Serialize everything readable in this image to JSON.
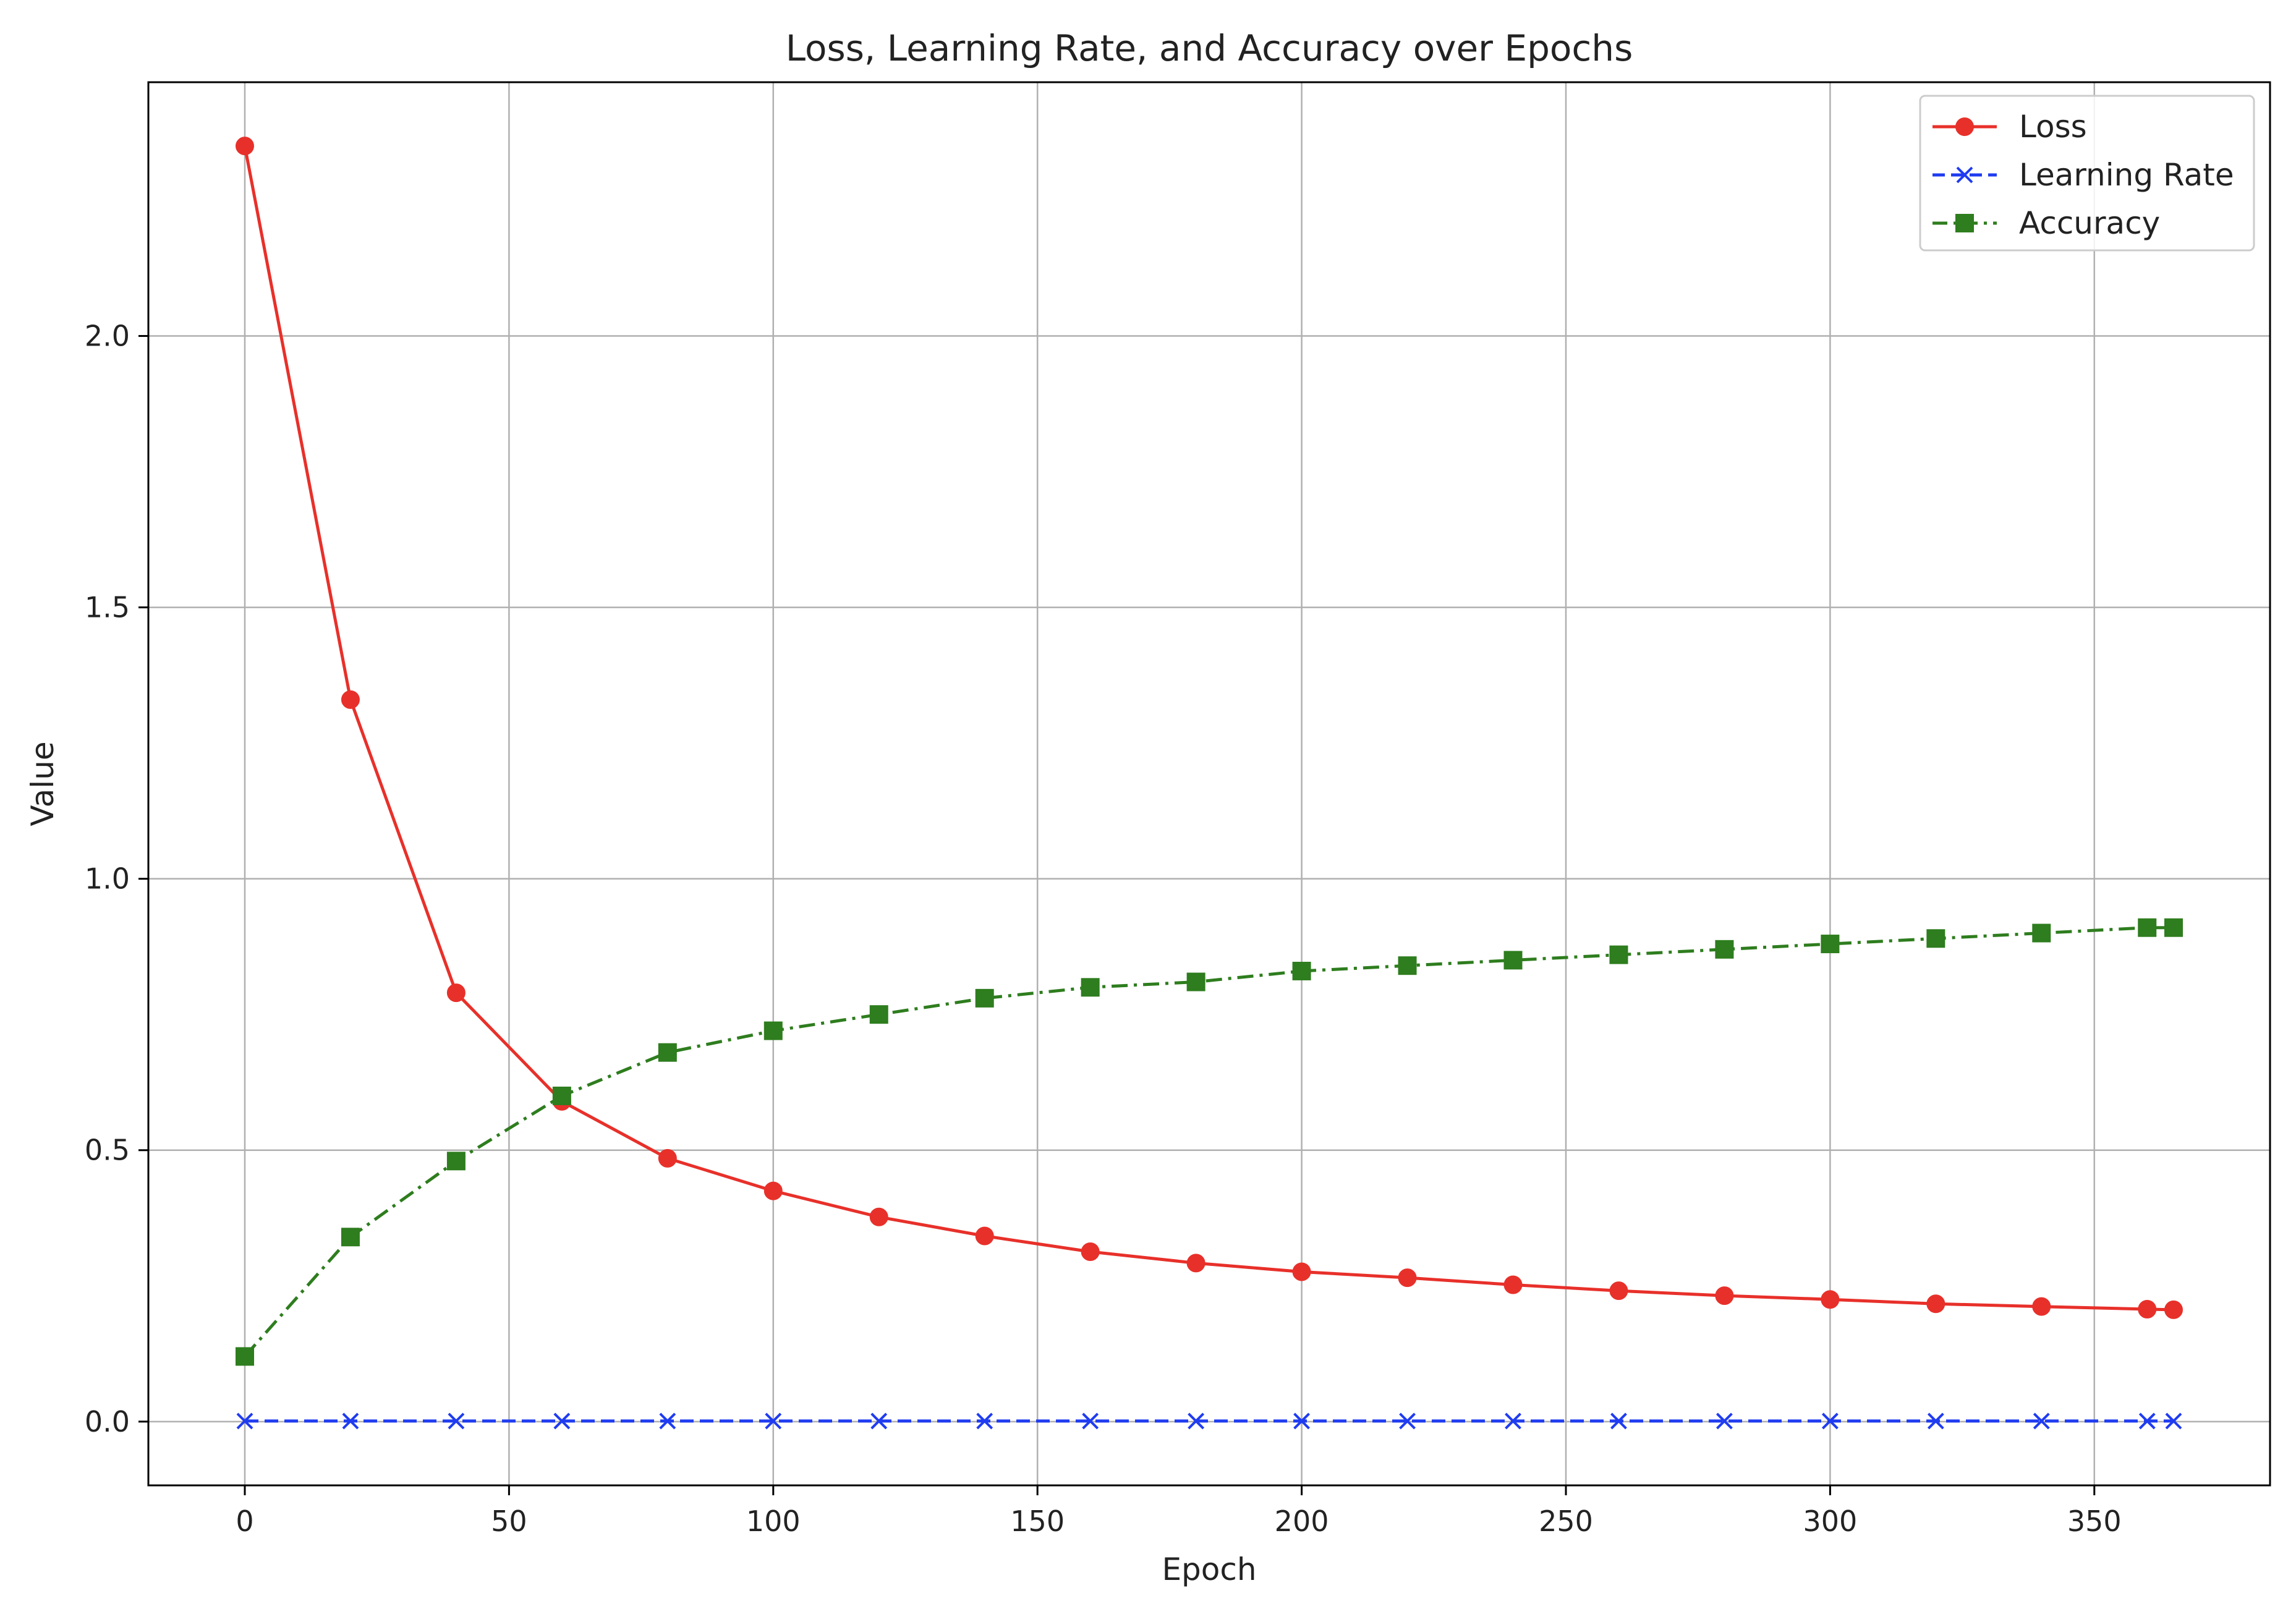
{
  "chart_data": {
    "type": "line",
    "title": "Loss, Learning Rate, and Accuracy over Epochs",
    "xlabel": "Epoch",
    "ylabel": "Value",
    "xlim": [
      -18.25,
      383.25
    ],
    "ylim": [
      -0.1175,
      2.4675
    ],
    "xticks": [
      0,
      50,
      100,
      150,
      200,
      250,
      300,
      350
    ],
    "yticks": [
      0.0,
      0.5,
      1.0,
      1.5,
      2.0
    ],
    "ytick_labels": [
      "0.0",
      "0.5",
      "1.0",
      "1.5",
      "2.0"
    ],
    "grid": true,
    "legend_position": "top-right",
    "x": [
      0,
      20,
      40,
      60,
      80,
      100,
      120,
      140,
      160,
      180,
      200,
      220,
      240,
      260,
      280,
      300,
      320,
      340,
      360,
      365
    ],
    "series": [
      {
        "name": "Loss",
        "color": "#e8302a",
        "line_style": "solid",
        "marker": "circle",
        "values": [
          2.35,
          1.33,
          0.79,
          0.59,
          0.485,
          0.425,
          0.377,
          0.342,
          0.313,
          0.292,
          0.276,
          0.265,
          0.252,
          0.241,
          0.232,
          0.225,
          0.217,
          0.212,
          0.207,
          0.206
        ]
      },
      {
        "name": "Learning Rate",
        "color": "#1f3cf0",
        "line_style": "dashed",
        "marker": "x",
        "values": [
          0.001,
          0.001,
          0.001,
          0.001,
          0.001,
          0.001,
          0.001,
          0.001,
          0.001,
          0.001,
          0.001,
          0.001,
          0.001,
          0.001,
          0.001,
          0.001,
          0.001,
          0.001,
          0.001,
          0.001
        ]
      },
      {
        "name": "Accuracy",
        "color": "#2e7d1e",
        "line_style": "dashdot",
        "marker": "square",
        "values": [
          0.12,
          0.34,
          0.48,
          0.6,
          0.68,
          0.72,
          0.75,
          0.78,
          0.8,
          0.81,
          0.83,
          0.84,
          0.85,
          0.86,
          0.87,
          0.88,
          0.89,
          0.9,
          0.91,
          0.91
        ]
      }
    ]
  }
}
